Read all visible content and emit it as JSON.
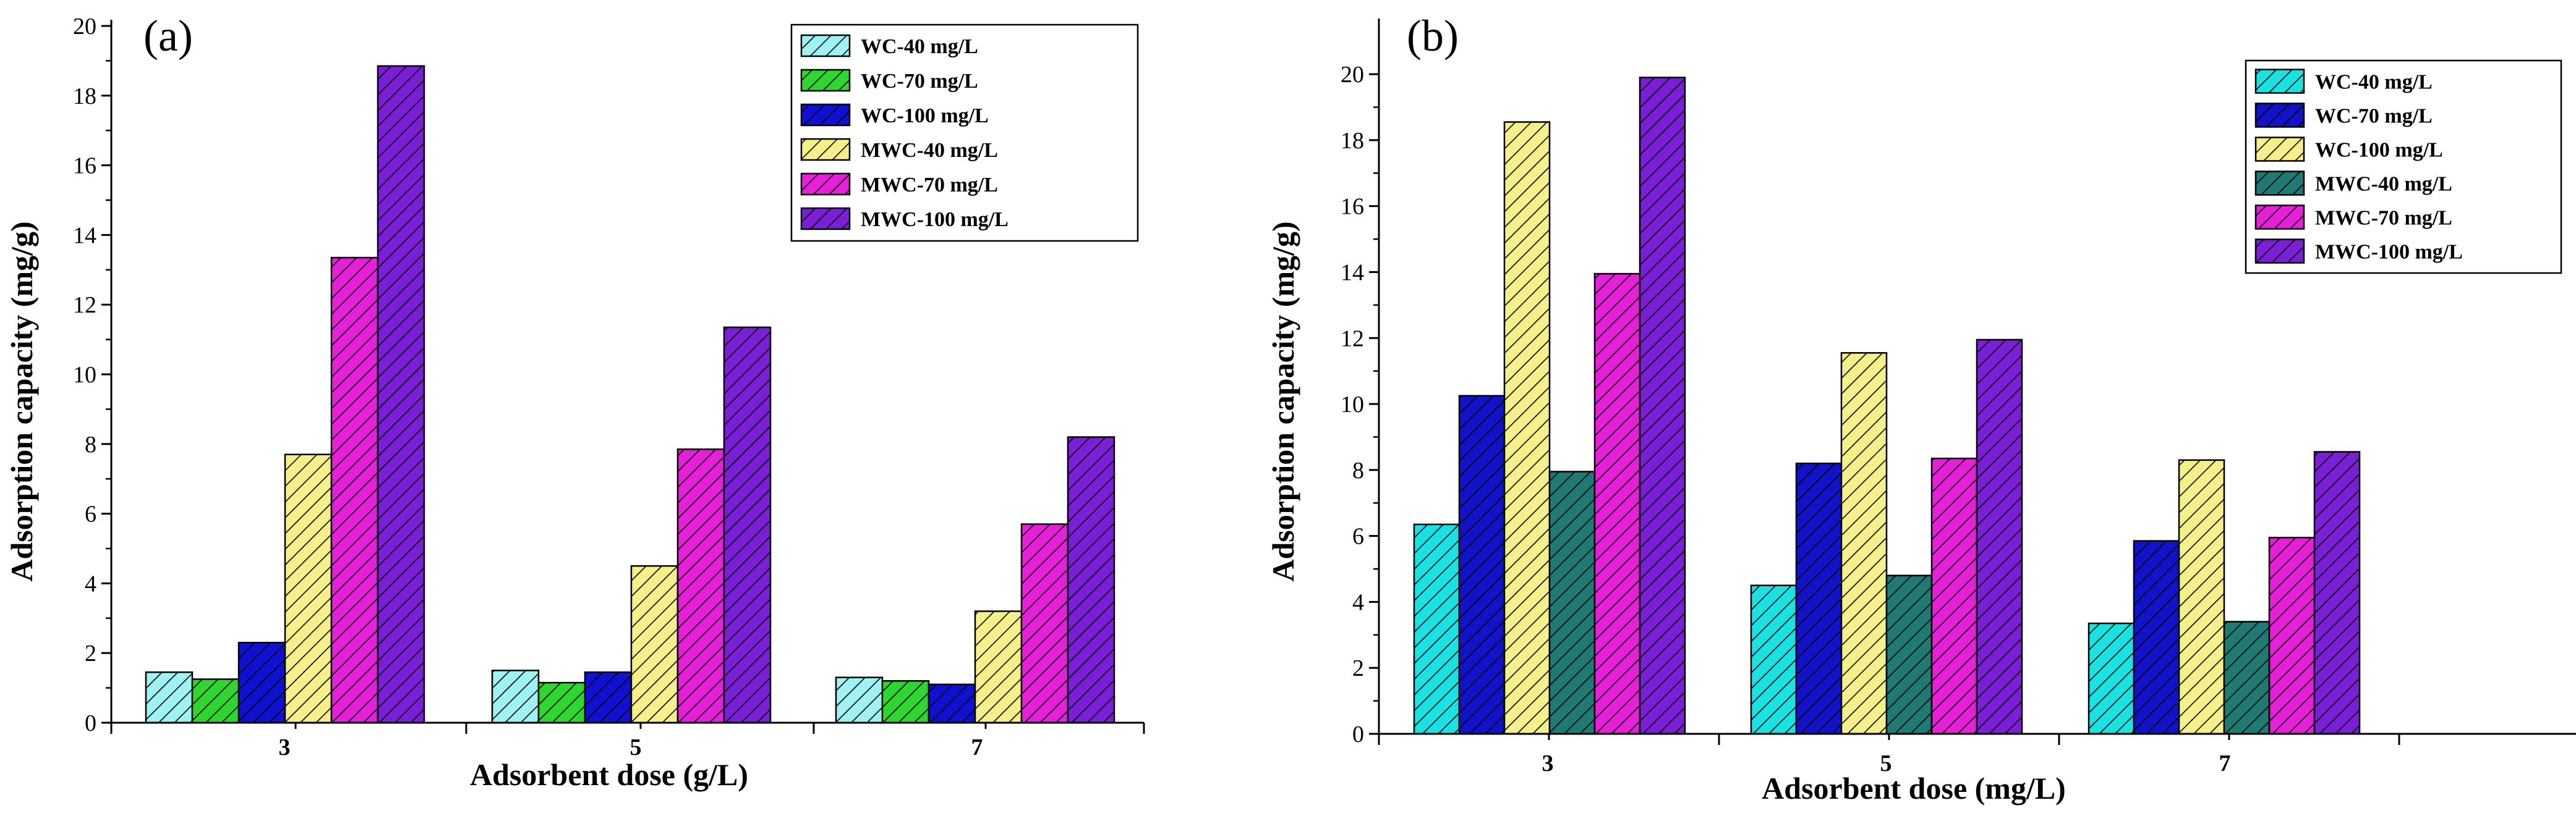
{
  "chart_data": [
    {
      "panel": "(a)",
      "type": "bar",
      "categories": [
        "3",
        "5",
        "7"
      ],
      "xlabel": "Adsorbent dose (g/L)",
      "ylabel": "Adsorption capacity (mg/g)",
      "ylim": [
        0,
        20
      ],
      "yticks": [
        "0",
        "2",
        "4",
        "6",
        "8",
        "10",
        "12",
        "14",
        "16",
        "18",
        "20"
      ],
      "legend_position": "top-right",
      "series": [
        {
          "name": "WC-40 mg/L",
          "color": "#9ef2f2",
          "values": [
            1.45,
            1.5,
            1.3
          ]
        },
        {
          "name": "WC-70 mg/L",
          "color": "#2fd62f",
          "values": [
            1.25,
            1.15,
            1.2
          ]
        },
        {
          "name": "WC-100 mg/L",
          "color": "#1010d0",
          "values": [
            2.3,
            1.45,
            1.1
          ]
        },
        {
          "name": "MWC-40 mg/L",
          "color": "#f6f08a",
          "values": [
            7.7,
            4.5,
            3.2
          ]
        },
        {
          "name": "MWC-70 mg/L",
          "color": "#e61fd8",
          "values": [
            13.35,
            7.85,
            5.7
          ]
        },
        {
          "name": "MWC-100 mg/L",
          "color": "#7a1fd6",
          "values": [
            18.85,
            11.35,
            8.2
          ]
        }
      ]
    },
    {
      "panel": "(b)",
      "type": "bar",
      "categories": [
        "3",
        "5",
        "7"
      ],
      "xlabel": "Adsorbent dose (mg/L)",
      "ylabel": "Adsorption capacity (mg/g)",
      "ylim": [
        0,
        21.5
      ],
      "yticks": [
        "0",
        "2",
        "4",
        "6",
        "8",
        "10",
        "12",
        "14",
        "16",
        "18",
        "20"
      ],
      "legend_position": "top-right",
      "series": [
        {
          "name": "WC-40 mg/L",
          "color": "#19e2e2",
          "values": [
            6.35,
            4.5,
            3.35
          ]
        },
        {
          "name": "WC-70 mg/L",
          "color": "#1212c8",
          "values": [
            10.25,
            8.2,
            5.85
          ]
        },
        {
          "name": "WC-100 mg/L",
          "color": "#f6f08a",
          "values": [
            18.55,
            11.55,
            8.3
          ]
        },
        {
          "name": "MWC-40 mg/L",
          "color": "#1f7a73",
          "values": [
            7.95,
            4.8,
            3.4
          ]
        },
        {
          "name": "MWC-70 mg/L",
          "color": "#e61fd8",
          "values": [
            13.95,
            8.35,
            5.95
          ]
        },
        {
          "name": "MWC-100 mg/L",
          "color": "#7a1fd6",
          "values": [
            19.9,
            11.95,
            8.55
          ]
        }
      ]
    }
  ]
}
